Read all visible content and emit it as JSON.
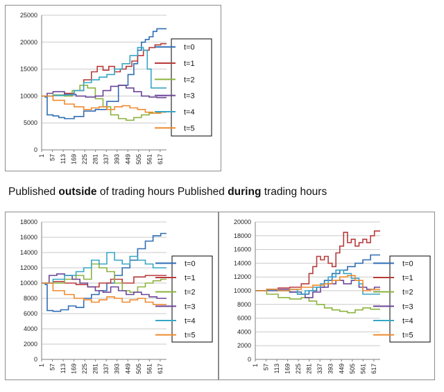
{
  "caption": {
    "part1": "Published ",
    "bold1": "outside",
    "part2": " of trading hours  Published ",
    "bold2": "during",
    "part3": " trading hours"
  },
  "colors": {
    "t0": "#2e6db4",
    "t1": "#b83a3a",
    "t2": "#8cb33e",
    "t3": "#6a4596",
    "t4": "#36a6c4",
    "t5": "#ef8a2e"
  },
  "chart_data": [
    {
      "type": "line",
      "title": "",
      "xlabel": "",
      "ylabel": "",
      "ylim": [
        0,
        25000
      ],
      "yticks": [
        0,
        5000,
        10000,
        15000,
        20000,
        25000
      ],
      "xticks": [
        1,
        57,
        113,
        169,
        225,
        281,
        337,
        393,
        449,
        505,
        561,
        617
      ],
      "xlim": [
        1,
        650
      ],
      "grid": "horizontal",
      "legend": "right",
      "series": [
        {
          "name": "t=0",
          "x": [
            1,
            20,
            30,
            60,
            90,
            120,
            170,
            220,
            280,
            340,
            400,
            450,
            480,
            500,
            520,
            540,
            560,
            580,
            600,
            620,
            650
          ],
          "y": [
            10000,
            9800,
            6500,
            6300,
            6000,
            5800,
            6200,
            7200,
            7500,
            9000,
            12000,
            14000,
            16000,
            18500,
            20000,
            20500,
            21000,
            22000,
            22500,
            22500,
            22500
          ]
        },
        {
          "name": "t=1",
          "x": [
            1,
            60,
            120,
            170,
            220,
            260,
            290,
            320,
            350,
            380,
            410,
            440,
            470,
            500,
            530,
            560,
            590,
            620,
            650
          ],
          "y": [
            10000,
            10200,
            10500,
            11000,
            13000,
            14500,
            15500,
            14800,
            15500,
            14500,
            15000,
            15500,
            16500,
            17500,
            18500,
            19000,
            19500,
            19700,
            19700
          ]
        },
        {
          "name": "t=2",
          "x": [
            1,
            60,
            120,
            160,
            200,
            240,
            280,
            320,
            360,
            400,
            440,
            480,
            520,
            560,
            600,
            650
          ],
          "y": [
            10000,
            10200,
            10000,
            11000,
            12000,
            11500,
            9500,
            8000,
            6500,
            5800,
            5500,
            6000,
            6500,
            6800,
            7000,
            7000
          ]
        },
        {
          "name": "t=3",
          "x": [
            1,
            30,
            60,
            120,
            180,
            230,
            280,
            320,
            360,
            400,
            440,
            480,
            520,
            560,
            600,
            650
          ],
          "y": [
            10000,
            10500,
            10800,
            10300,
            10000,
            9800,
            10000,
            11000,
            11800,
            12000,
            11500,
            10800,
            10000,
            9800,
            9700,
            9700
          ]
        },
        {
          "name": "t=4",
          "x": [
            1,
            60,
            120,
            170,
            220,
            260,
            300,
            340,
            380,
            420,
            460,
            500,
            530,
            550,
            570,
            600,
            650
          ],
          "y": [
            10000,
            10100,
            10200,
            11000,
            12500,
            13000,
            13500,
            14000,
            15000,
            16000,
            17500,
            19000,
            18500,
            15000,
            11500,
            11500,
            11500
          ]
        },
        {
          "name": "t=5",
          "x": [
            1,
            60,
            120,
            170,
            220,
            260,
            300,
            340,
            380,
            420,
            460,
            500,
            540,
            580,
            620,
            650
          ],
          "y": [
            10000,
            9200,
            8500,
            8000,
            7500,
            7800,
            8000,
            7500,
            8000,
            8200,
            7800,
            7500,
            7000,
            6800,
            7000,
            7000
          ]
        }
      ]
    },
    {
      "type": "line",
      "title": "",
      "xlabel": "",
      "ylabel": "",
      "ylim": [
        0,
        18000
      ],
      "yticks": [
        0,
        2000,
        4000,
        6000,
        8000,
        10000,
        12000,
        14000,
        16000,
        18000
      ],
      "xticks": [
        1,
        57,
        113,
        169,
        225,
        281,
        337,
        393,
        449,
        505,
        561,
        617
      ],
      "xlim": [
        1,
        650
      ],
      "grid": "horizontal",
      "legend": "right",
      "series": [
        {
          "name": "t=0",
          "x": [
            1,
            20,
            30,
            60,
            100,
            140,
            180,
            220,
            260,
            300,
            340,
            380,
            420,
            460,
            500,
            540,
            580,
            620,
            650
          ],
          "y": [
            10000,
            9800,
            6400,
            6300,
            6500,
            7000,
            6800,
            8000,
            8500,
            9000,
            10000,
            11000,
            12000,
            13000,
            14500,
            15500,
            16200,
            16500,
            16500
          ]
        },
        {
          "name": "t=1",
          "x": [
            1,
            60,
            120,
            180,
            240,
            300,
            360,
            420,
            480,
            540,
            600,
            650
          ],
          "y": [
            10000,
            10200,
            10000,
            9800,
            9500,
            10000,
            10500,
            10000,
            10800,
            11000,
            11000,
            11000
          ]
        },
        {
          "name": "t=2",
          "x": [
            1,
            60,
            120,
            180,
            220,
            260,
            300,
            340,
            380,
            420,
            460,
            500,
            540,
            580,
            620,
            650
          ],
          "y": [
            10000,
            10000,
            10500,
            11000,
            10500,
            12500,
            12000,
            11500,
            10000,
            9000,
            8800,
            9500,
            10000,
            10300,
            10500,
            10500
          ]
        },
        {
          "name": "t=3",
          "x": [
            1,
            40,
            80,
            120,
            160,
            200,
            240,
            280,
            320,
            360,
            400,
            440,
            480,
            520,
            560,
            600,
            650
          ],
          "y": [
            10000,
            11000,
            11200,
            11000,
            10500,
            10000,
            9500,
            9000,
            8800,
            9500,
            9000,
            8500,
            8800,
            8500,
            8200,
            8000,
            8000
          ]
        },
        {
          "name": "t=4",
          "x": [
            1,
            60,
            120,
            180,
            220,
            260,
            300,
            340,
            380,
            420,
            460,
            500,
            540,
            580,
            620,
            650
          ],
          "y": [
            10000,
            10500,
            11000,
            11500,
            12000,
            13000,
            12500,
            14000,
            13000,
            12500,
            13500,
            13000,
            12500,
            12000,
            12000,
            12000
          ]
        },
        {
          "name": "t=5",
          "x": [
            1,
            60,
            120,
            170,
            220,
            260,
            300,
            340,
            380,
            420,
            460,
            500,
            540,
            580,
            620,
            650
          ],
          "y": [
            10000,
            9000,
            8500,
            8000,
            7800,
            7500,
            7800,
            8200,
            8000,
            7500,
            7800,
            8000,
            7500,
            7200,
            7200,
            7200
          ]
        }
      ]
    },
    {
      "type": "line",
      "title": "",
      "xlabel": "",
      "ylabel": "",
      "ylim": [
        0,
        20000
      ],
      "yticks": [
        0,
        2000,
        4000,
        6000,
        8000,
        10000,
        12000,
        14000,
        16000,
        18000,
        20000
      ],
      "xticks": [
        1,
        57,
        113,
        169,
        225,
        281,
        337,
        393,
        449,
        505,
        561,
        617
      ],
      "xlim": [
        1,
        650
      ],
      "grid": "horizontal",
      "legend": "right",
      "series": [
        {
          "name": "t=0",
          "x": [
            1,
            60,
            120,
            180,
            240,
            280,
            320,
            360,
            400,
            440,
            480,
            520,
            560,
            600,
            650
          ],
          "y": [
            10000,
            10200,
            10000,
            9800,
            9500,
            10000,
            10500,
            11500,
            12500,
            13000,
            13500,
            14000,
            14500,
            15200,
            15200
          ]
        },
        {
          "name": "t=1",
          "x": [
            1,
            60,
            120,
            180,
            240,
            280,
            300,
            320,
            340,
            360,
            380,
            400,
            420,
            440,
            460,
            480,
            500,
            520,
            540,
            560,
            580,
            600,
            620,
            650
          ],
          "y": [
            10000,
            10200,
            10400,
            10500,
            11000,
            12500,
            13500,
            15000,
            14500,
            15000,
            14000,
            13500,
            15500,
            16500,
            18500,
            17000,
            17500,
            16500,
            17000,
            17500,
            17000,
            18000,
            18700,
            18700
          ]
        },
        {
          "name": "t=2",
          "x": [
            1,
            60,
            120,
            180,
            240,
            280,
            320,
            360,
            400,
            440,
            480,
            520,
            560,
            600,
            650
          ],
          "y": [
            10000,
            9500,
            9000,
            8800,
            9000,
            8500,
            8000,
            7500,
            7200,
            7000,
            6800,
            7200,
            7500,
            7300,
            7300
          ]
        },
        {
          "name": "t=3",
          "x": [
            1,
            60,
            120,
            180,
            220,
            260,
            300,
            340,
            380,
            420,
            460,
            500,
            540,
            580,
            620,
            650
          ],
          "y": [
            10000,
            10000,
            10200,
            9800,
            9500,
            9000,
            9800,
            10500,
            11000,
            11500,
            11000,
            11500,
            10500,
            10200,
            10500,
            10500
          ]
        },
        {
          "name": "t=4",
          "x": [
            1,
            60,
            120,
            180,
            220,
            260,
            300,
            340,
            380,
            420,
            460,
            500,
            540,
            560,
            580,
            620,
            650
          ],
          "y": [
            10000,
            10100,
            10000,
            10200,
            9500,
            10000,
            10500,
            11000,
            12000,
            13000,
            12500,
            11800,
            11000,
            9500,
            9500,
            9500,
            9500
          ]
        },
        {
          "name": "t=5",
          "x": [
            1,
            60,
            120,
            180,
            240,
            300,
            360,
            400,
            440,
            480,
            520,
            560,
            600,
            650
          ],
          "y": [
            10000,
            10200,
            10000,
            10200,
            10500,
            10800,
            11000,
            11500,
            12000,
            12200,
            11500,
            10000,
            10200,
            10200
          ]
        }
      ]
    }
  ]
}
